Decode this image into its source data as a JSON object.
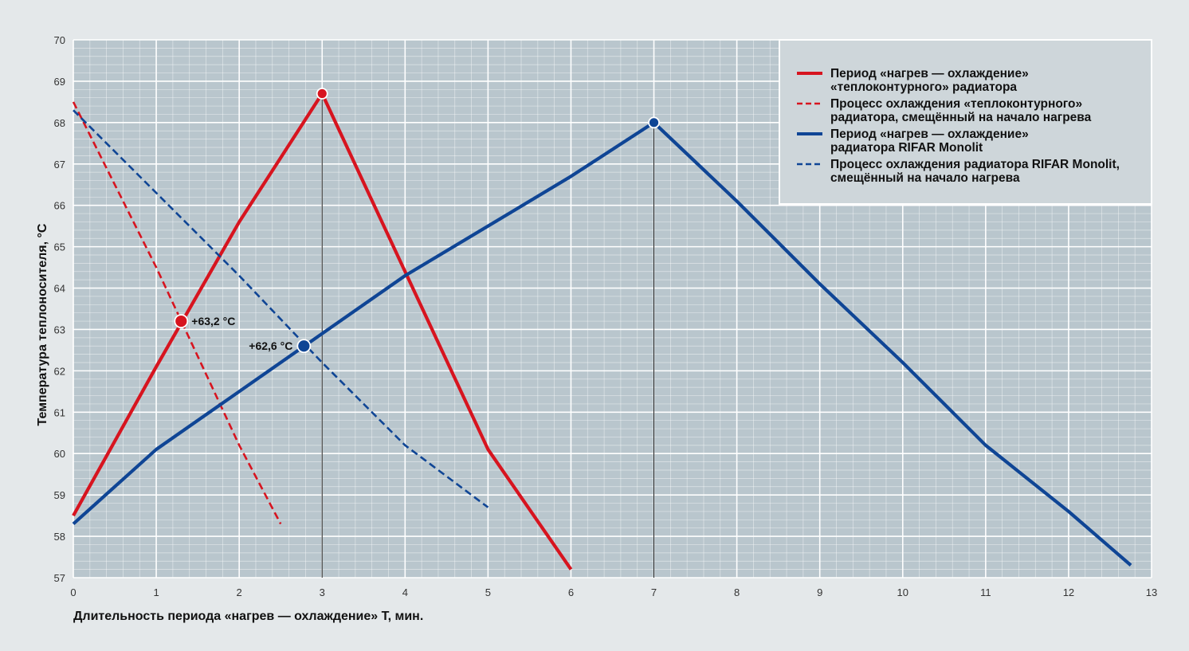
{
  "chart_data": {
    "type": "line",
    "xlabel": "Длительность периода «нагрев — охлаждение» T, мин.",
    "ylabel": "Температура теплоносителя, °С",
    "xlim": [
      0,
      13
    ],
    "ylim": [
      57,
      70
    ],
    "x_ticks": [
      "0",
      "1",
      "2",
      "3",
      "4",
      "5",
      "6",
      "7",
      "8",
      "9",
      "10",
      "11",
      "12",
      "13"
    ],
    "y_ticks": [
      "57",
      "58",
      "59",
      "60",
      "61",
      "62",
      "63",
      "64",
      "65",
      "66",
      "67",
      "68",
      "69",
      "70"
    ],
    "grid": true,
    "legend_position": "top-right",
    "series": [
      {
        "name": "Период «нагрев — охлаждение» «теплоконтурного» радиатора",
        "color": "#d7141f",
        "style": "solid",
        "points": [
          [
            0,
            58.5
          ],
          [
            1,
            62.1
          ],
          [
            2,
            65.6
          ],
          [
            3,
            68.7
          ],
          [
            4,
            64.4
          ],
          [
            5,
            60.1
          ],
          [
            6,
            57.2
          ]
        ]
      },
      {
        "name": "Процесс охлаждения «теплоконтурного» радиатора, смещённый на начало нагрева",
        "color": "#d7141f",
        "style": "dashed",
        "points": [
          [
            0,
            68.5
          ],
          [
            1,
            64.5
          ],
          [
            2,
            60.2
          ],
          [
            2.5,
            58.3
          ]
        ]
      },
      {
        "name": "Период «нагрев — охлаждение» радиатора RIFAR Monolit",
        "color": "#0f4595",
        "style": "solid",
        "points": [
          [
            0,
            58.3
          ],
          [
            1,
            60.1
          ],
          [
            2,
            61.5
          ],
          [
            3,
            62.9
          ],
          [
            4,
            64.3
          ],
          [
            5,
            65.5
          ],
          [
            6,
            66.7
          ],
          [
            7,
            68.0
          ],
          [
            8,
            66.1
          ],
          [
            9,
            64.1
          ],
          [
            10,
            62.2
          ],
          [
            11,
            60.2
          ],
          [
            12,
            58.6
          ],
          [
            12.75,
            57.3
          ]
        ]
      },
      {
        "name": "Процесс охлаждения радиатора RIFAR Monolit, смещённый на начало нагрева",
        "color": "#0f4595",
        "style": "dashed",
        "points": [
          [
            0,
            68.3
          ],
          [
            1,
            66.3
          ],
          [
            2,
            64.3
          ],
          [
            3,
            62.2
          ],
          [
            4,
            60.2
          ],
          [
            5,
            58.7
          ]
        ]
      }
    ],
    "markers": [
      {
        "x": 1.3,
        "y": 63.2,
        "color": "#d7141f",
        "label": "+63,2 °С"
      },
      {
        "x": 2.78,
        "y": 62.6,
        "color": "#0f4595",
        "label": "+62,6 °С"
      },
      {
        "x": 3,
        "y": 68.7,
        "color": "#d7141f",
        "label": ""
      },
      {
        "x": 7,
        "y": 68.0,
        "color": "#0f4595",
        "label": ""
      }
    ],
    "vertical_lines": [
      3,
      7
    ]
  }
}
